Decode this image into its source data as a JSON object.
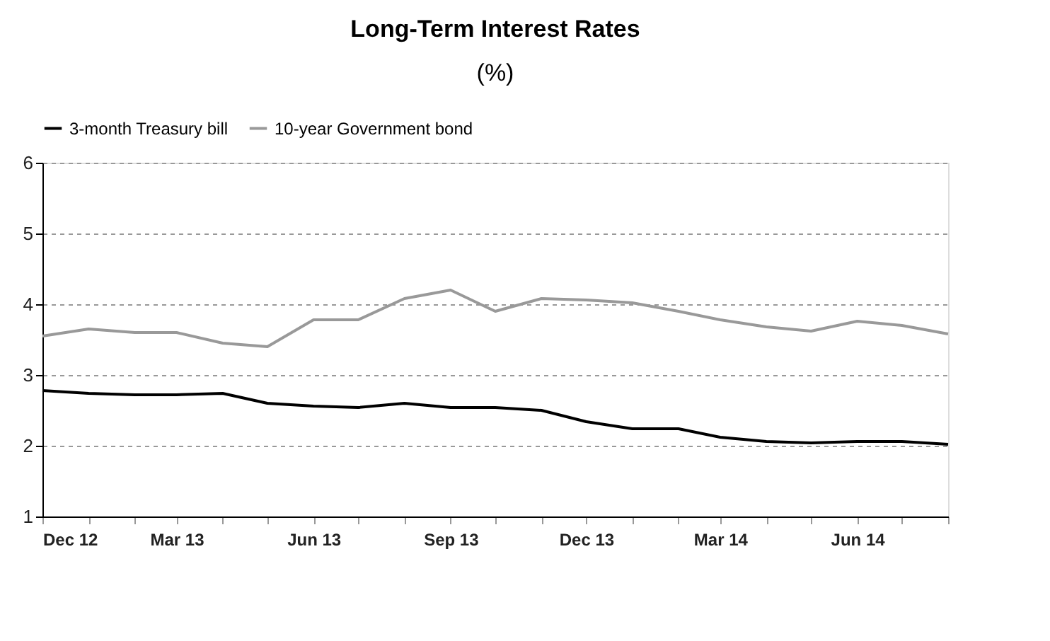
{
  "chart_data": {
    "type": "line",
    "title": "Long-Term Interest Rates",
    "subtitle": "(%)",
    "x": [
      "2012-12",
      "2013-01",
      "2013-02",
      "2013-03",
      "2013-04",
      "2013-05",
      "2013-06",
      "2013-07",
      "2013-08",
      "2013-09",
      "2013-10",
      "2013-11",
      "2013-12",
      "2014-01",
      "2014-02",
      "2014-03",
      "2014-04",
      "2014-05",
      "2014-06",
      "2014-07",
      "2014-08"
    ],
    "series": [
      {
        "name": "3-month Treasury bill",
        "color": "#000000",
        "values": [
          2.78,
          2.74,
          2.72,
          2.72,
          2.74,
          2.6,
          2.56,
          2.54,
          2.6,
          2.54,
          2.54,
          2.5,
          2.34,
          2.24,
          2.24,
          2.12,
          2.06,
          2.04,
          2.06,
          2.06,
          2.02
        ]
      },
      {
        "name": "10-year Government bond",
        "color": "#999999",
        "values": [
          3.55,
          3.65,
          3.6,
          3.6,
          3.45,
          3.4,
          3.78,
          3.78,
          4.08,
          4.2,
          3.9,
          4.08,
          4.06,
          4.02,
          3.9,
          3.78,
          3.68,
          3.62,
          3.76,
          3.7,
          3.58
        ]
      }
    ],
    "xlim": [
      "2012-12",
      "2014-08"
    ],
    "xticks": [
      {
        "value": "2012-12",
        "label": "Dec 12"
      },
      {
        "value": "2013-01",
        "label": null
      },
      {
        "value": "2013-02",
        "label": null
      },
      {
        "value": "2013-03",
        "label": "Mar 13"
      },
      {
        "value": "2013-04",
        "label": null
      },
      {
        "value": "2013-05",
        "label": null
      },
      {
        "value": "2013-06",
        "label": "Jun 13"
      },
      {
        "value": "2013-07",
        "label": null
      },
      {
        "value": "2013-08",
        "label": null
      },
      {
        "value": "2013-09",
        "label": "Sep 13"
      },
      {
        "value": "2013-10",
        "label": null
      },
      {
        "value": "2013-11",
        "label": null
      },
      {
        "value": "2013-12",
        "label": "Dec 13"
      },
      {
        "value": "2014-01",
        "label": null
      },
      {
        "value": "2014-02",
        "label": null
      },
      {
        "value": "2014-03",
        "label": "Mar 14"
      },
      {
        "value": "2014-04",
        "label": null
      },
      {
        "value": "2014-05",
        "label": null
      },
      {
        "value": "2014-06",
        "label": "Jun 14"
      },
      {
        "value": "2014-07",
        "label": null
      },
      {
        "value": "2014-08",
        "label": null
      }
    ],
    "ylim": [
      1,
      6
    ],
    "yticks": [
      1,
      2,
      3,
      4,
      5,
      6
    ],
    "grid": "y",
    "legend": "top",
    "marker": "none",
    "line_style": "solid"
  }
}
